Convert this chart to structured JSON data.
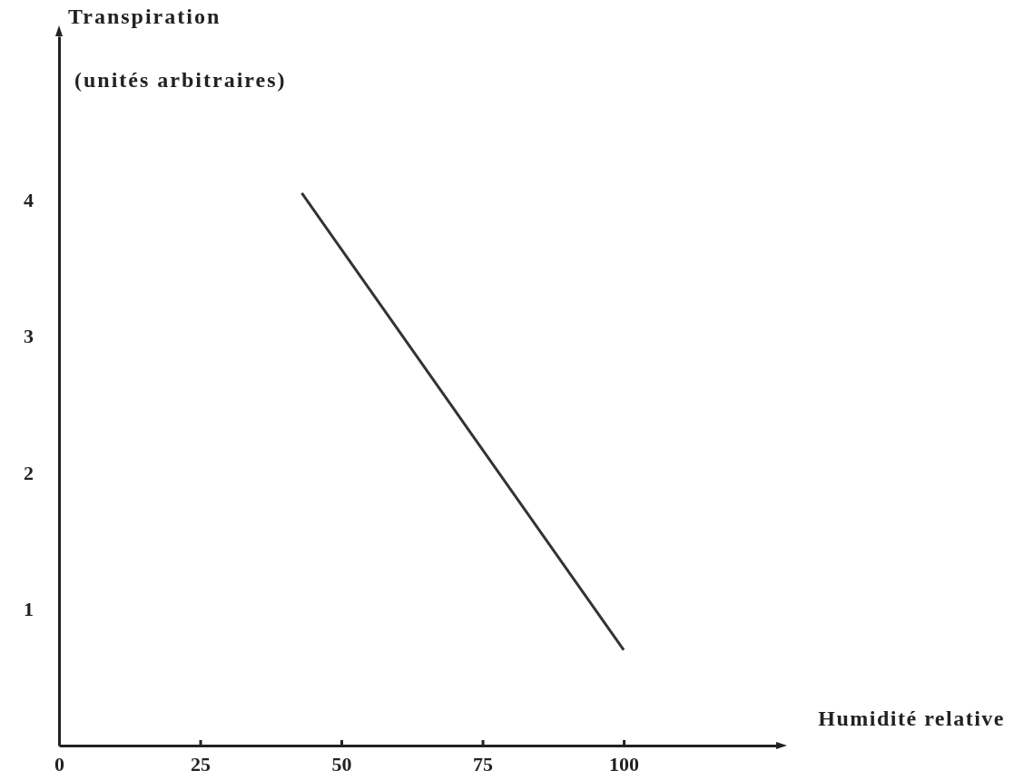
{
  "chart_data": {
    "type": "line",
    "xlabel": "Humidité relative",
    "ylabel": "Transpiration\n(unités arbitraires)",
    "x": [
      43,
      100
    ],
    "series": [
      {
        "color": "#333333",
        "values": [
          4.05,
          0.7
        ]
      }
    ],
    "xlim": [
      0,
      127
    ],
    "xticks": [
      0,
      25,
      50,
      75,
      100
    ],
    "ylim": [
      0,
      5.2
    ],
    "yticks": [
      1,
      2,
      3,
      4
    ],
    "marker": "none",
    "line_style": "solid"
  }
}
